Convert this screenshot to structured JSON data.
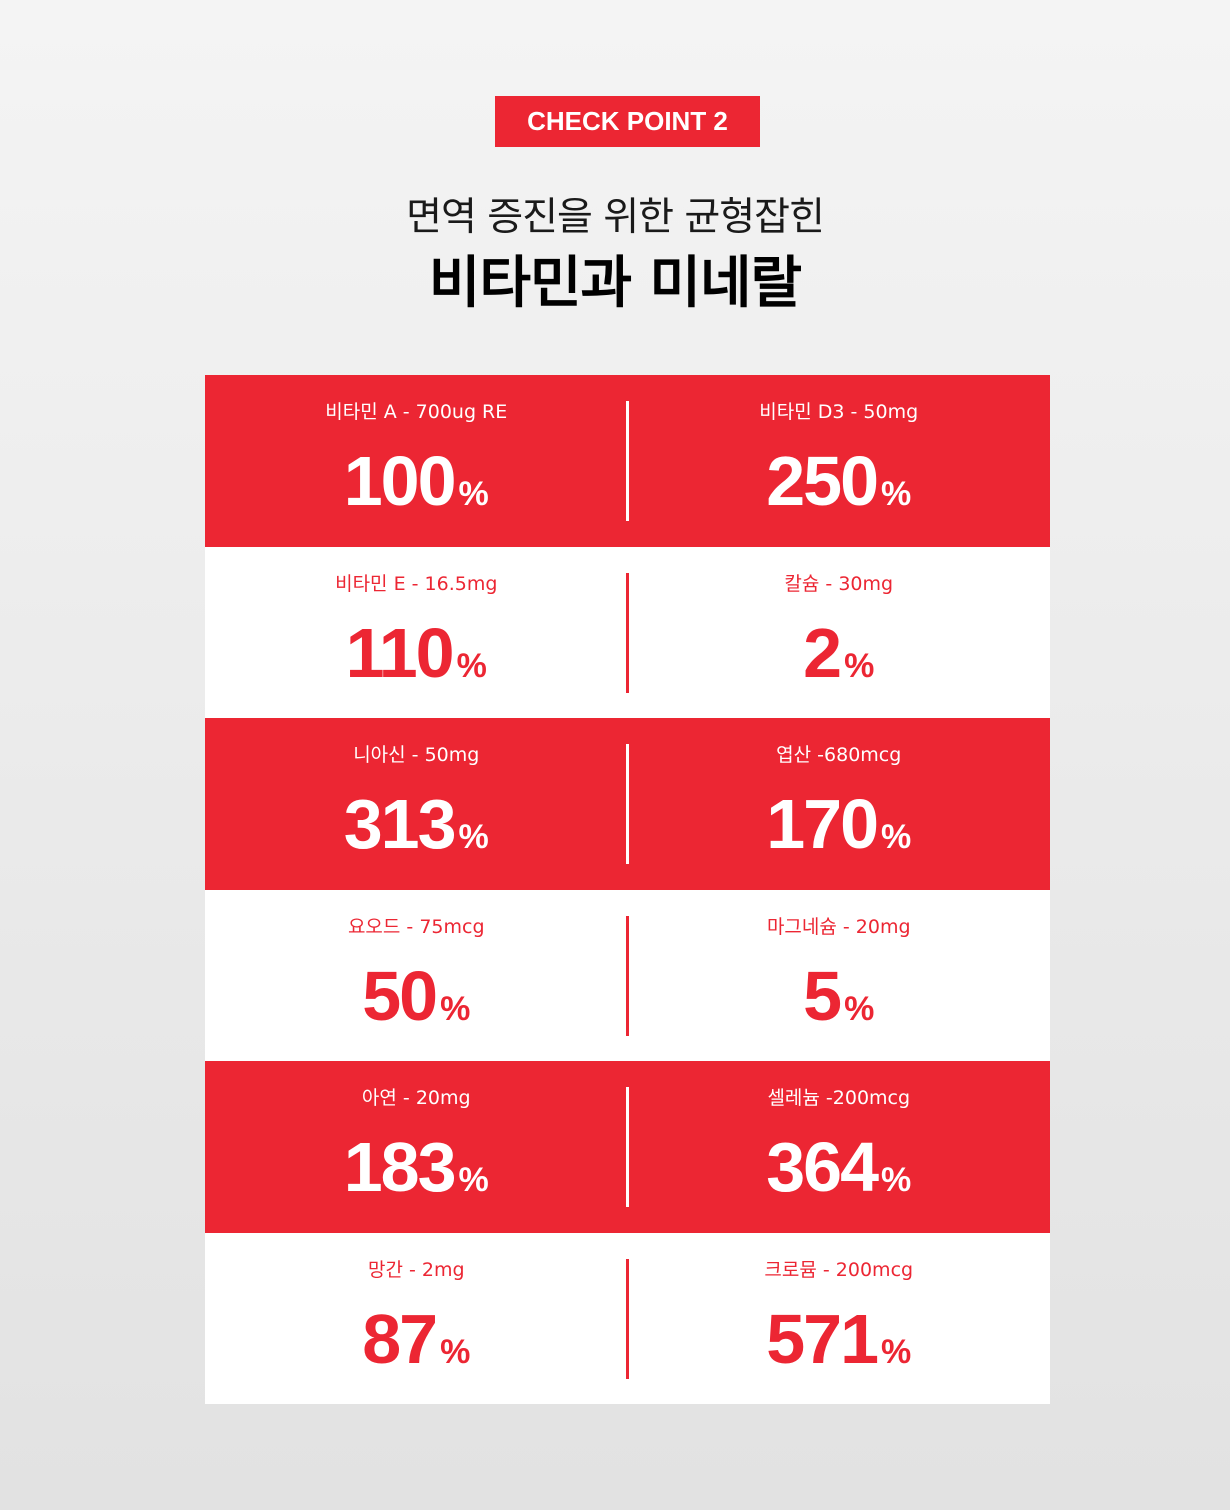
{
  "badge": {
    "text": "CHECK POINT 2"
  },
  "heading": {
    "subtitle": "면역 증진을 위한 균형잡힌",
    "title": "비타민과 미네랄"
  },
  "colors": {
    "accent": "#ec2633",
    "white": "#ffffff",
    "text": "#000000"
  },
  "rows": [
    {
      "style": "red",
      "left": {
        "label": "비타민 A - 700ug RE",
        "value": "100",
        "unit": "%"
      },
      "right": {
        "label": "비타민 D3 - 50mg",
        "value": "250",
        "unit": "%"
      }
    },
    {
      "style": "white",
      "left": {
        "label": "비타민 E - 16.5mg",
        "value": "110",
        "unit": "%"
      },
      "right": {
        "label": "칼슘 - 30mg",
        "value": "2",
        "unit": "%"
      }
    },
    {
      "style": "red",
      "left": {
        "label": "니아신 - 50mg",
        "value": "313",
        "unit": "%"
      },
      "right": {
        "label": "엽산 -680mcg",
        "value": "170",
        "unit": "%"
      }
    },
    {
      "style": "white",
      "left": {
        "label": "요오드 - 75mcg",
        "value": "50",
        "unit": "%"
      },
      "right": {
        "label": "마그네슘 - 20mg",
        "value": "5",
        "unit": "%"
      }
    },
    {
      "style": "red",
      "left": {
        "label": "아연 - 20mg",
        "value": "183",
        "unit": "%"
      },
      "right": {
        "label": "셀레늄 -200mcg",
        "value": "364",
        "unit": "%"
      }
    },
    {
      "style": "white",
      "left": {
        "label": "망간 - 2mg",
        "value": "87",
        "unit": "%"
      },
      "right": {
        "label": "크로뮴 - 200mcg",
        "value": "571",
        "unit": "%"
      }
    }
  ]
}
